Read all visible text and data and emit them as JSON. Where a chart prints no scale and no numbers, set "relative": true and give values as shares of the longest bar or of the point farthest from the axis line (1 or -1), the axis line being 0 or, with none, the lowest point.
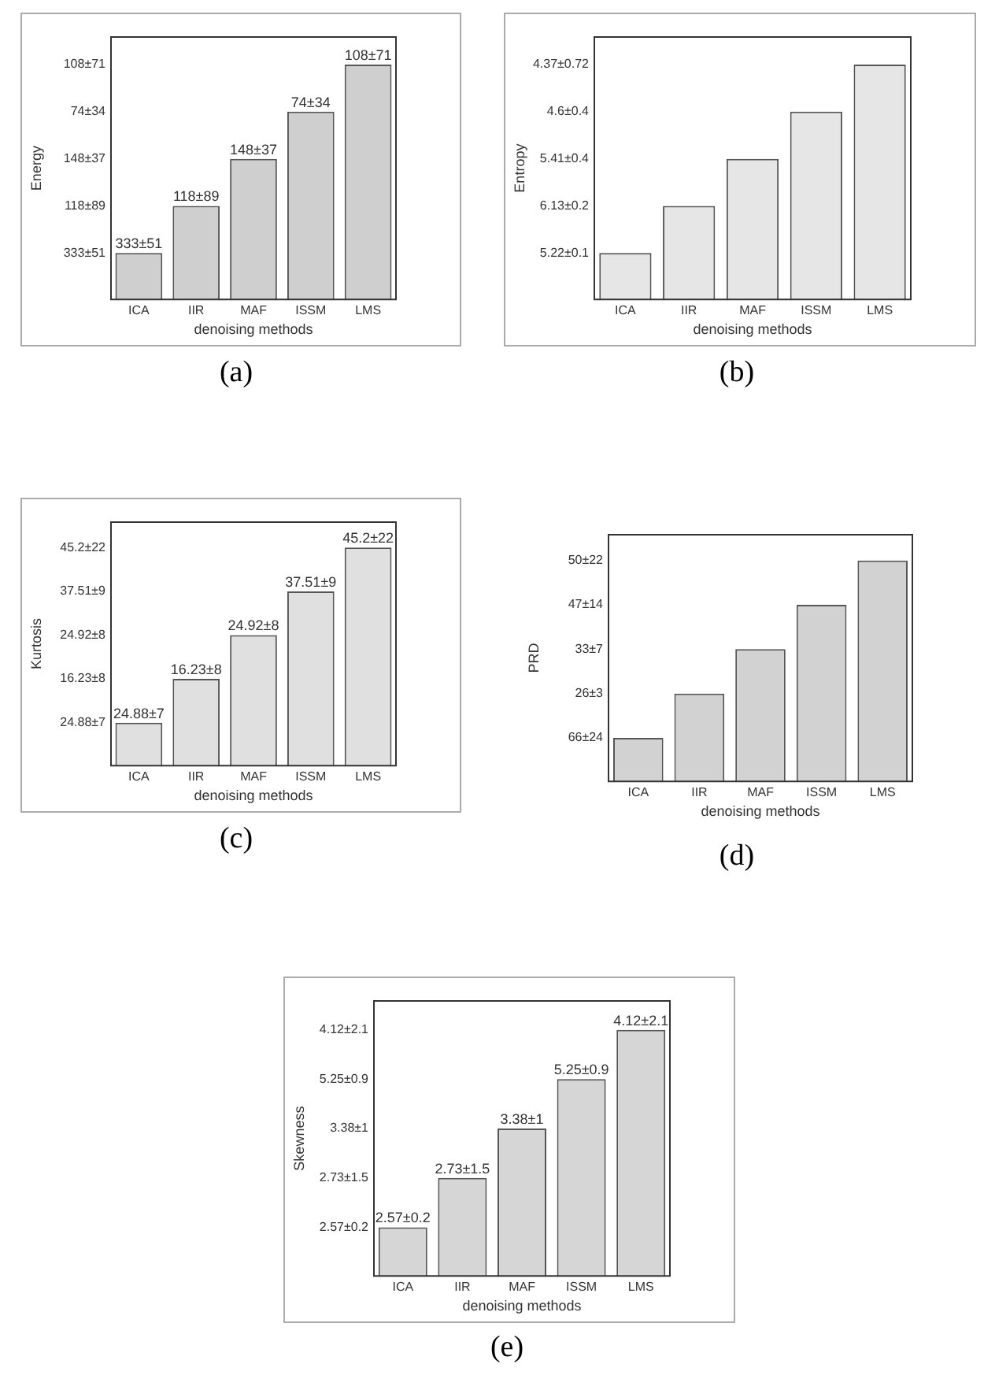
{
  "chart_data": [
    {
      "type": "bar",
      "relative": true,
      "xlabel": "denoising methods",
      "ylabel": "Energy",
      "categories": [
        "ICA",
        "IIR",
        "MAF",
        "ISSM",
        "LMS"
      ],
      "grid": false,
      "legend": false,
      "series": [
        {
          "color": "#cfcfcf",
          "values": [
            0.2,
            0.4,
            0.6,
            0.8,
            1
          ]
        }
      ],
      "annotations": [
        "333±51",
        "118±89",
        "148±37",
        "74±34",
        "108±71",
        "(a)",
        {
          "text": "333±51",
          "x": "ICA",
          "y": 0.2
        },
        {
          "text": "118±89",
          "x": "IIR",
          "y": 0.4
        },
        {
          "text": "148±37",
          "x": "MAF",
          "y": 0.6
        },
        {
          "text": "74±34",
          "x": "ISSM",
          "y": 0.8
        },
        {
          "text": "108±71",
          "x": "LMS",
          "y": 1
        }
      ]
    },
    {
      "type": "bar",
      "relative": true,
      "xlabel": "denoising methods",
      "ylabel": "Entropy",
      "categories": [
        "ICA",
        "IIR",
        "MAF",
        "ISSM",
        "LMS"
      ],
      "grid": false,
      "legend": false,
      "series": [
        {
          "color": "#e6e6e6",
          "values": [
            0.2,
            0.4,
            0.6,
            0.8,
            1
          ]
        }
      ],
      "annotations": [
        "5.22±0.1",
        "6.13±0.2",
        "5.41±0.4",
        "4.6±0.4",
        "4.37±0.72",
        "(b)"
      ]
    },
    {
      "type": "bar",
      "relative": true,
      "xlabel": "denoising methods",
      "ylabel": "Kurtosis",
      "categories": [
        "ICA",
        "IIR",
        "MAF",
        "ISSM",
        "LMS"
      ],
      "grid": false,
      "legend": false,
      "series": [
        {
          "color": "#e0e0e0",
          "values": [
            0.2,
            0.4,
            0.6,
            0.8,
            1
          ]
        }
      ],
      "annotations": [
        "24.88±7",
        "16.23±8",
        "24.92±8",
        "37.51±9",
        "45.2±22",
        "(c)",
        {
          "text": "24.88±7",
          "x": "ICA",
          "y": 0.2
        },
        {
          "text": "16.23±8",
          "x": "IIR",
          "y": 0.4
        },
        {
          "text": "24.92±8",
          "x": "MAF",
          "y": 0.6
        },
        {
          "text": "37.51±9",
          "x": "ISSM",
          "y": 0.8
        },
        {
          "text": "45.2±22",
          "x": "LMS",
          "y": 1
        }
      ]
    },
    {
      "type": "bar",
      "relative": true,
      "xlabel": "denoising methods",
      "ylabel": "PRD",
      "categories": [
        "ICA",
        "IIR",
        "MAF",
        "ISSM",
        "LMS"
      ],
      "grid": false,
      "legend": false,
      "series": [
        {
          "color": "#d2d2d2",
          "values": [
            0.2,
            0.4,
            0.6,
            0.8,
            1
          ]
        }
      ],
      "annotations": [
        "66±24",
        "26±3",
        "33±7",
        "47±14",
        "50±22",
        "(d)"
      ]
    },
    {
      "type": "bar",
      "relative": true,
      "xlabel": "denoising methods",
      "ylabel": "Skewness",
      "categories": [
        "ICA",
        "IIR",
        "MAF",
        "ISSM",
        "LMS"
      ],
      "grid": false,
      "legend": false,
      "series": [
        {
          "color": "#d6d6d6",
          "values": [
            0.2,
            0.4,
            0.6,
            0.8,
            1
          ]
        }
      ],
      "annotations": [
        "2.57±0.2",
        "2.73±1.5",
        "3.38±1",
        "5.25±0.9",
        "4.12±2.1",
        "(e)",
        {
          "text": "2.57±0.2",
          "x": "ICA",
          "y": 0.2
        },
        {
          "text": "2.73±1.5",
          "x": "IIR",
          "y": 0.4
        },
        {
          "text": "3.38±1",
          "x": "MAF",
          "y": 0.6
        },
        {
          "text": "5.25±0.9",
          "x": "ISSM",
          "y": 0.8
        },
        {
          "text": "4.12±2.1",
          "x": "LMS",
          "y": 1
        }
      ]
    }
  ]
}
